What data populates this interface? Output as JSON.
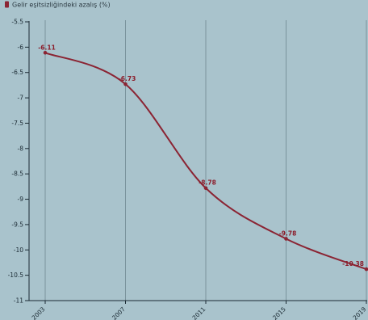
{
  "colors": {
    "background": "#a9c3cc",
    "series": "#8b2433",
    "grid": "#6f8790",
    "axis": "#1b2a33"
  },
  "chart_data": {
    "type": "line",
    "x": [
      "2003",
      "2007",
      "2011",
      "2015",
      "2019"
    ],
    "series": [
      {
        "name": "Gelir eşitsizliğindeki azalış (%)",
        "values": [
          -6.11,
          -6.73,
          -8.78,
          -9.78,
          -10.38
        ]
      }
    ],
    "data_labels": [
      "-6.11",
      "-6.73",
      "-8.78",
      "-9.78",
      "-10.38"
    ],
    "yticks": [
      "-5.5",
      "-6",
      "-6.5",
      "-7",
      "-7.5",
      "-8",
      "-8.5",
      "-9",
      "-9.5",
      "-10",
      "-10.5",
      "-11"
    ],
    "ylim": [
      -11,
      -5.5
    ],
    "grid": "vertical",
    "legend_position": "top-left",
    "smooth": true
  }
}
